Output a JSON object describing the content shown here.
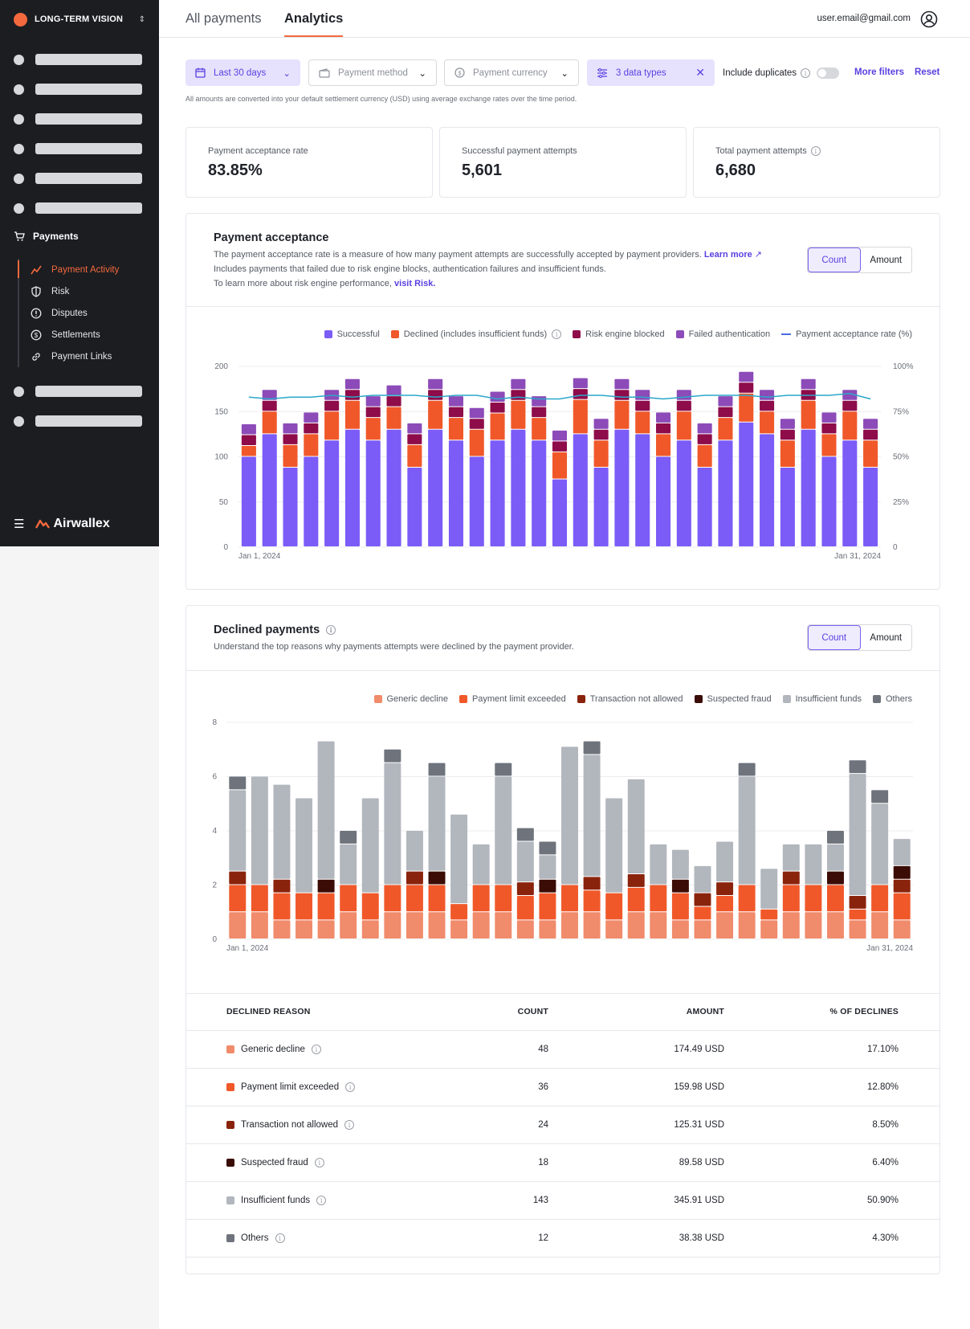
{
  "sidebar": {
    "org_name": "LONG-TERM VISION",
    "section": "Payments",
    "items": [
      {
        "label": "Payment Activity",
        "icon": "activity-icon",
        "active": true
      },
      {
        "label": "Risk",
        "icon": "shield-icon"
      },
      {
        "label": "Disputes",
        "icon": "alert-circle-icon"
      },
      {
        "label": "Settlements",
        "icon": "dollar-circle-icon"
      },
      {
        "label": "Payment Links",
        "icon": "link-icon"
      }
    ],
    "brand": "Airwallex"
  },
  "header": {
    "tabs": [
      "All payments",
      "Analytics"
    ],
    "active_tab": "Analytics",
    "user_email": "user.email@gmail.com"
  },
  "filters": {
    "date": "Last 30 days",
    "method": "Payment method",
    "currency": "Payment currency",
    "data_types": "3 data types",
    "include_duplicates": "Include duplicates",
    "more_filters": "More filters",
    "reset": "Reset",
    "note": "All amounts are converted into your default settlement currency (USD) using average exchange rates over the time period."
  },
  "kpis": [
    {
      "label": "Payment acceptance rate",
      "value": "83.85%"
    },
    {
      "label": "Successful payment attempts",
      "value": "5,601"
    },
    {
      "label": "Total payment attempts",
      "value": "6,680"
    }
  ],
  "acceptance": {
    "title": "Payment acceptance",
    "desc1": "The payment acceptance rate is a measure of how many payment attempts are successfully accepted by payment providers.",
    "learn_more": "Learn more",
    "desc2": "Includes payments that failed due to risk engine blocks, authentication failures and insufficient funds.",
    "desc3": "To learn more about risk engine performance,",
    "visit_risk": "visit Risk.",
    "toggle": [
      "Count",
      "Amount"
    ],
    "legend": [
      "Successful",
      "Declined (includes insufficient funds)",
      "Risk engine blocked",
      "Failed authentication",
      "Payment acceptance rate (%)"
    ]
  },
  "declined": {
    "title": "Declined payments",
    "desc": "Understand the top reasons why payments attempts were declined by the payment provider.",
    "toggle": [
      "Count",
      "Amount"
    ],
    "legend": [
      "Generic decline",
      "Payment limit exceeded",
      "Transaction not allowed",
      "Suspected fraud",
      "Insufficient funds",
      "Others"
    ],
    "table": {
      "headers": [
        "DECLINED REASON",
        "COUNT",
        "AMOUNT",
        "% OF DECLINES"
      ],
      "rows": [
        {
          "reason": "Generic decline",
          "count": "48",
          "amount": "174.49 USD",
          "pct": "17.10%"
        },
        {
          "reason": "Payment limit exceeded",
          "count": "36",
          "amount": "159.98 USD",
          "pct": "12.80%"
        },
        {
          "reason": "Transaction not allowed",
          "count": "24",
          "amount": "125.31 USD",
          "pct": "8.50%"
        },
        {
          "reason": "Suspected fraud",
          "count": "18",
          "amount": "89.58 USD",
          "pct": "6.40%"
        },
        {
          "reason": "Insufficient funds",
          "count": "143",
          "amount": "345.91 USD",
          "pct": "50.90%"
        },
        {
          "reason": "Others",
          "count": "12",
          "amount": "38.38 USD",
          "pct": "4.30%"
        }
      ]
    }
  },
  "colors": {
    "successful": "#7b5cf7",
    "declined": "#f0582a",
    "risk": "#8e0c4a",
    "failed_auth": "#8c4bb8",
    "rate": "#2aa7c9",
    "generic": "#f08b6c",
    "limit": "#f0582a",
    "not_allowed": "#8a230c",
    "fraud": "#3a0c05",
    "insufficient": "#b2b6bd",
    "others": "#6e737c"
  },
  "chart_data": [
    {
      "type": "bar",
      "stacked": true,
      "title": "Payment acceptance",
      "x_start_label": "Jan 1, 2024",
      "x_end_label": "Jan 31, 2024",
      "ylim": [
        0,
        200
      ],
      "yticks": [
        0,
        50,
        100,
        150,
        200
      ],
      "y2ticks": [
        "0",
        "25%",
        "50%",
        "75%",
        "100%"
      ],
      "series": [
        {
          "name": "Successful",
          "values": [
            100,
            125,
            88,
            100,
            118,
            130,
            118,
            130,
            88,
            130,
            118,
            100,
            118,
            130,
            118,
            75,
            125,
            88,
            130,
            125,
            100,
            118,
            88,
            118,
            138,
            125,
            88,
            130,
            100,
            118,
            88
          ]
        },
        {
          "name": "Declined (includes insufficient funds)",
          "values": [
            12,
            25,
            25,
            25,
            32,
            32,
            25,
            25,
            25,
            32,
            25,
            30,
            30,
            32,
            25,
            30,
            38,
            30,
            32,
            25,
            25,
            32,
            25,
            25,
            32,
            25,
            30,
            32,
            25,
            32,
            30
          ]
        },
        {
          "name": "Risk engine blocked",
          "values": [
            12,
            12,
            12,
            12,
            12,
            12,
            12,
            12,
            12,
            12,
            12,
            12,
            12,
            12,
            12,
            12,
            12,
            12,
            12,
            12,
            12,
            12,
            12,
            12,
            12,
            12,
            12,
            12,
            12,
            12,
            12
          ]
        },
        {
          "name": "Failed authentication",
          "values": [
            12,
            12,
            12,
            12,
            12,
            12,
            12,
            12,
            12,
            12,
            12,
            12,
            12,
            12,
            12,
            12,
            12,
            12,
            12,
            12,
            12,
            12,
            12,
            12,
            12,
            12,
            12,
            12,
            12,
            12,
            12
          ]
        }
      ],
      "rate": [
        83,
        82,
        83,
        83,
        84,
        83,
        84,
        84,
        84,
        83,
        84,
        84,
        82,
        83,
        82,
        82,
        84,
        84,
        83,
        83,
        82,
        83,
        84,
        84,
        84,
        83,
        84,
        84,
        84,
        85,
        82
      ]
    },
    {
      "type": "bar",
      "stacked": true,
      "title": "Declined payments",
      "x_start_label": "Jan 1, 2024",
      "x_end_label": "Jan 31, 2024",
      "ylim": [
        0,
        8
      ],
      "yticks": [
        0,
        2,
        4,
        6,
        8
      ],
      "series": [
        {
          "name": "Generic decline",
          "values": [
            1,
            1,
            0.7,
            0.7,
            0.7,
            1,
            0.7,
            1,
            1,
            1,
            0.7,
            1,
            1,
            0.7,
            0.7,
            1,
            1,
            0.7,
            1,
            1,
            0.7,
            0.7,
            1,
            1,
            0.7,
            1,
            1,
            1,
            0.7,
            1,
            0.7
          ]
        },
        {
          "name": "Payment limit exceeded",
          "values": [
            1,
            1,
            1,
            1,
            1,
            1,
            1,
            1,
            1,
            1,
            0.6,
            1,
            1,
            0.9,
            1,
            1,
            0.8,
            1,
            0.9,
            1,
            1,
            0.5,
            0.6,
            1,
            0.4,
            1,
            1,
            1,
            0.4,
            1,
            1
          ]
        },
        {
          "name": "Transaction not allowed",
          "values": [
            0.5,
            0,
            0.5,
            0,
            0,
            0,
            0,
            0,
            0.5,
            0,
            0,
            0,
            0,
            0.5,
            0,
            0,
            0.5,
            0,
            0.5,
            0,
            0,
            0.5,
            0.5,
            0,
            0,
            0.5,
            0,
            0,
            0.5,
            0,
            0.5
          ]
        },
        {
          "name": "Suspected fraud",
          "values": [
            0,
            0,
            0,
            0,
            0.5,
            0,
            0,
            0,
            0,
            0.5,
            0,
            0,
            0,
            0,
            0.5,
            0,
            0,
            0,
            0,
            0,
            0.5,
            0,
            0,
            0,
            0,
            0,
            0,
            0.5,
            0,
            0,
            0.5
          ]
        },
        {
          "name": "Insufficient funds",
          "values": [
            3,
            4,
            3.5,
            3.5,
            5.1,
            1.5,
            3.5,
            4.5,
            1.5,
            3.5,
            3.3,
            1.5,
            4,
            1.5,
            0.9,
            5.1,
            4.5,
            3.5,
            3.5,
            1.5,
            1.1,
            1,
            1.5,
            4,
            1.5,
            1,
            1.5,
            1,
            4.5,
            3,
            1
          ]
        },
        {
          "name": "Others",
          "values": [
            0.5,
            0,
            0,
            0,
            0,
            0.5,
            0,
            0.5,
            0,
            0.5,
            0,
            0,
            0.5,
            0.5,
            0.5,
            0,
            0.5,
            0,
            0,
            0,
            0,
            0,
            0,
            0.5,
            0,
            0,
            0,
            0.5,
            0.5,
            0.5,
            0
          ]
        }
      ]
    }
  ]
}
